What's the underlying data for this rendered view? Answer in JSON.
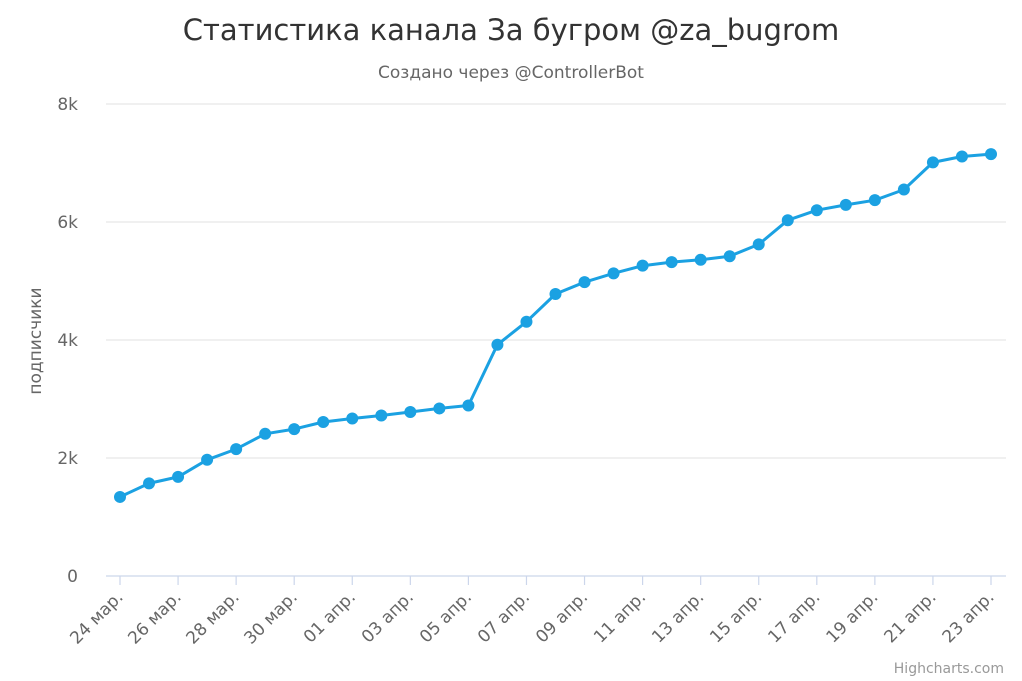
{
  "chart_data": {
    "type": "line",
    "title": "Статистика канала За бугром @za_bugrom",
    "subtitle": "Создано через @ControllerBot",
    "ylabel": "подписчики",
    "ylim": [
      0,
      8000
    ],
    "yticks": [
      0,
      2000,
      4000,
      6000,
      8000
    ],
    "ytick_labels": [
      "0",
      "2k",
      "4k",
      "6k",
      "8k"
    ],
    "grid": true,
    "legend": "none",
    "x_tick_labels": [
      "24 мар.",
      "26 мар.",
      "28 мар.",
      "30 мар.",
      "01 апр.",
      "03 апр.",
      "05 апр.",
      "07 апр.",
      "09 апр.",
      "11 апр.",
      "13 апр.",
      "15 апр.",
      "17 апр.",
      "19 апр.",
      "21 апр.",
      "23 апр."
    ],
    "x": [
      "24 мар.",
      "25 мар.",
      "26 мар.",
      "27 мар.",
      "28 мар.",
      "29 мар.",
      "30 мар.",
      "31 мар.",
      "01 апр.",
      "02 апр.",
      "03 апр.",
      "04 апр.",
      "05 апр.",
      "06 апр.",
      "07 апр.",
      "08 апр.",
      "09 апр.",
      "10 апр.",
      "11 апр.",
      "12 апр.",
      "13 апр.",
      "14 апр.",
      "15 апр.",
      "16 апр.",
      "17 апр.",
      "18 апр.",
      "19 апр.",
      "20 апр.",
      "21 апр.",
      "22 апр.",
      "23 апр."
    ],
    "series": [
      {
        "color": "#1ba1e2",
        "values": [
          1340,
          1570,
          1680,
          1970,
          2150,
          2410,
          2490,
          2610,
          2670,
          2720,
          2780,
          2840,
          2890,
          3920,
          4310,
          4780,
          4980,
          5130,
          5260,
          5320,
          5360,
          5420,
          5620,
          6030,
          6200,
          6290,
          6370,
          6550,
          7010,
          7110,
          7150
        ]
      }
    ]
  },
  "credits": "Highcharts.com"
}
